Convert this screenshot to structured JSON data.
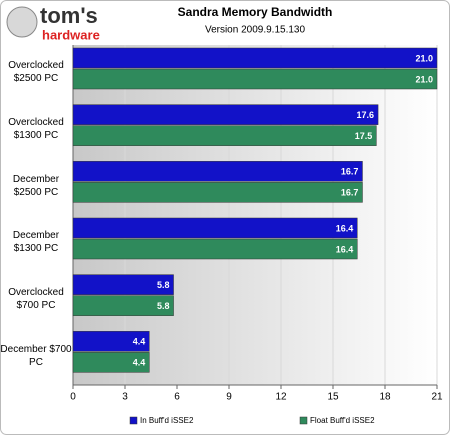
{
  "logo": {
    "line1": "tom's",
    "line2": "hardware"
  },
  "chart_data": {
    "type": "hbar",
    "title": "Sandra Memory Bandwidth",
    "subtitle": "Version 2009.9.15.130",
    "categories": [
      "Overclocked $2500 PC",
      "Overclocked $1300 PC",
      "December $2500 PC",
      "December $1300 PC",
      "Overclocked $700 PC",
      "December $700 PC"
    ],
    "series": [
      {
        "name": "In Buff'd iSSE2",
        "color": "#1212c8",
        "values": [
          21.0,
          17.6,
          16.7,
          16.4,
          5.8,
          4.4
        ],
        "value_labels": [
          "21.0",
          "17.6",
          "16.7",
          "16.4",
          "5.8",
          "4.4"
        ]
      },
      {
        "name": "Float Buff'd iSSE2",
        "color": "#2f8a5c",
        "values": [
          21.0,
          17.5,
          16.7,
          16.4,
          5.8,
          4.4
        ],
        "value_labels": [
          "21.0",
          "17.5",
          "16.7",
          "16.4",
          "5.8",
          "4.4"
        ]
      }
    ],
    "xlim": [
      0,
      21
    ],
    "xticks": [
      0,
      3,
      6,
      9,
      12,
      15,
      18,
      21
    ],
    "grid": true
  }
}
